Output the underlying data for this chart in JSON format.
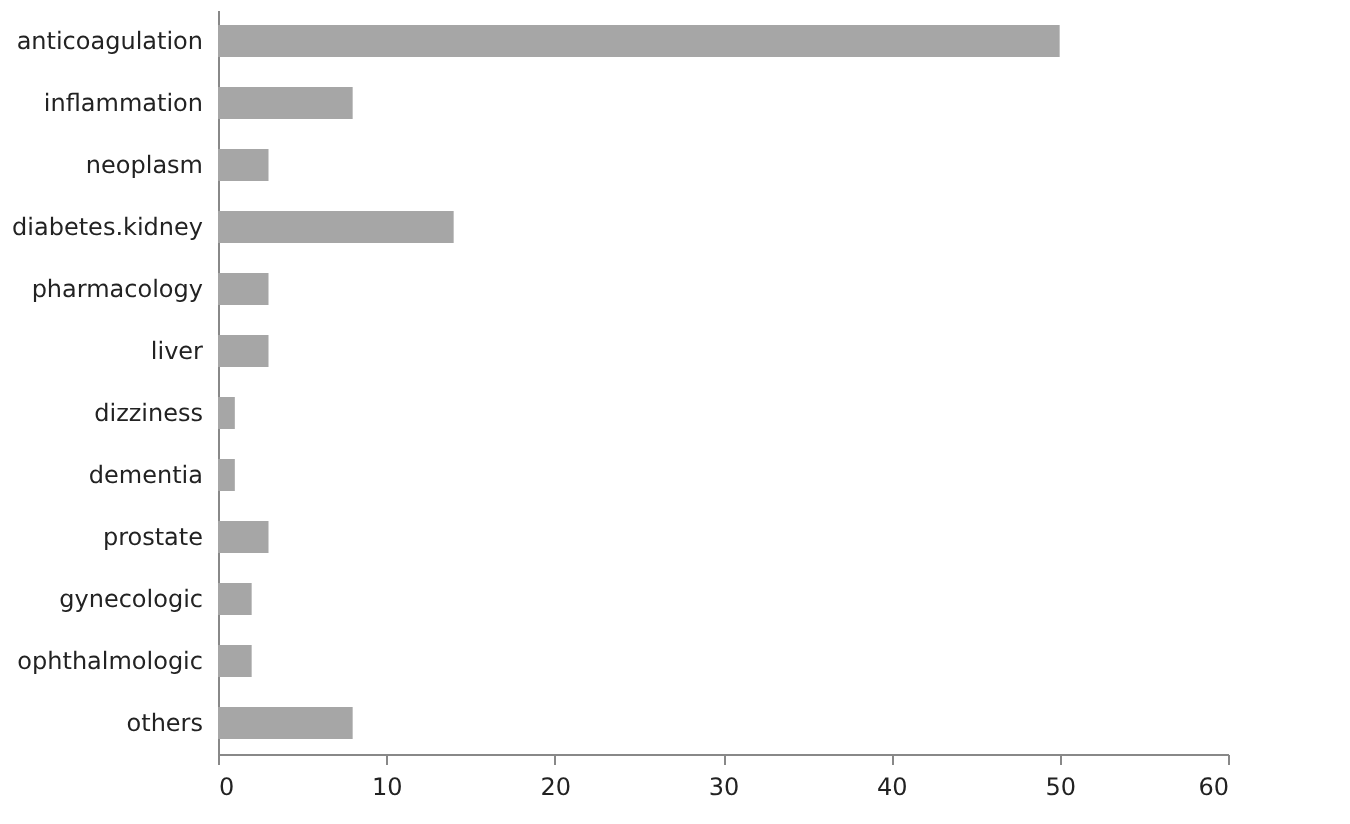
{
  "chart_data": {
    "type": "bar",
    "orientation": "horizontal",
    "categories": [
      "anticoagulation",
      "inflammation",
      "neoplasm",
      "diabetes.kidney",
      "pharmacology",
      "liver",
      "dizziness",
      "dementia",
      "prostate",
      "gynecologic",
      "ophthalmologic",
      "others"
    ],
    "values": [
      50,
      8,
      3,
      14,
      3,
      3,
      1,
      1,
      3,
      2,
      2,
      8
    ],
    "color": "#a6a6a6",
    "xlim": [
      0,
      60
    ],
    "xticks": [
      0,
      10,
      20,
      30,
      40,
      50,
      60
    ],
    "grid": false
  }
}
